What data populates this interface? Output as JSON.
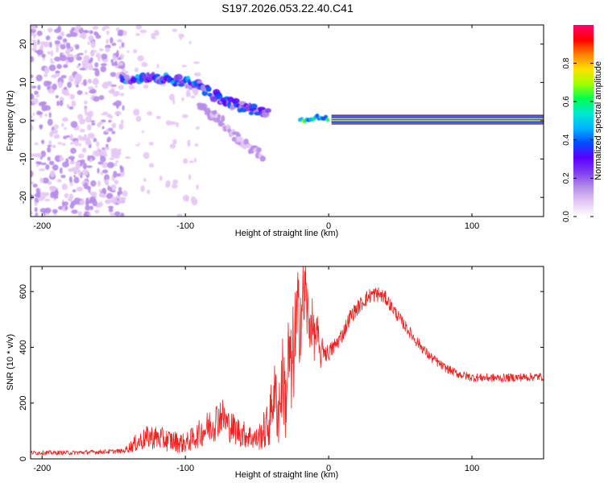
{
  "title": "S197.2026.053.22.40.C41",
  "colors": {
    "snr_line": "#ee2222",
    "frame": "#000000",
    "colormap": [
      "#ffffff",
      "#e4c8f4",
      "#b58ce8",
      "#7e3cf0",
      "#5a00ff",
      "#0050ff",
      "#00b4ff",
      "#00e8d0",
      "#00ff50",
      "#a0ff00",
      "#ffe000",
      "#ff8000",
      "#ff0000",
      "#ff0070"
    ]
  },
  "chart_data": [
    {
      "type": "heatmap",
      "id": "spectrogram",
      "xlabel": "Height of straight line (km)",
      "ylabel": "Frequency (Hz)",
      "xlim": [
        -208,
        150
      ],
      "ylim": [
        -25,
        25
      ],
      "xticks": [
        -200,
        -100,
        0,
        100
      ],
      "yticks": [
        -20,
        -10,
        0,
        10,
        20
      ],
      "colorbar": {
        "label": "Normalized spectral amplitude",
        "range": [
          0,
          1
        ],
        "ticks": [
          0.0,
          0.2,
          0.4,
          0.6,
          0.8
        ]
      },
      "features": [
        {
          "name": "diffuse noise region",
          "x_range": [
            -208,
            -143
          ],
          "freq_range": [
            -25,
            25
          ],
          "amplitude": 0.1
        },
        {
          "name": "fading noise region",
          "x_range": [
            -143,
            -90
          ],
          "freq_range": [
            -25,
            25
          ],
          "amplitude": 0.05
        },
        {
          "name": "upper branch",
          "x": [
            -145,
            -130,
            -115,
            -100,
            -90
          ],
          "freq": [
            11,
            11.2,
            10.8,
            10,
            9.5
          ],
          "amplitude": 0.35
        },
        {
          "name": "descending branch",
          "x": [
            -90,
            -75,
            -60,
            -50,
            -42
          ],
          "freq": [
            9,
            5.5,
            3.5,
            2.5,
            1.5
          ],
          "amplitude": 0.3
        },
        {
          "name": "lower branch",
          "x": [
            -90,
            -75,
            -60,
            -45
          ],
          "freq": [
            4,
            0,
            -6,
            -9
          ],
          "amplitude": 0.15
        },
        {
          "name": "zero-frequency trace",
          "x": [
            -20,
            -10,
            0,
            150
          ],
          "freq": [
            0,
            1,
            0.3,
            0.3
          ],
          "amplitude": 1.0
        }
      ]
    },
    {
      "type": "line",
      "id": "snr",
      "xlabel": "Height of straight line (km)",
      "ylabel": "SNR (10 * v/v)",
      "xlim": [
        -208,
        150
      ],
      "ylim": [
        0,
        690
      ],
      "xticks": [
        -200,
        -100,
        0,
        100
      ],
      "yticks": [
        0,
        200,
        400,
        600
      ],
      "series": [
        {
          "name": "SNR",
          "x": [
            -208,
            -180,
            -160,
            -143,
            -135,
            -125,
            -110,
            -100,
            -90,
            -80,
            -75,
            -70,
            -60,
            -50,
            -42,
            -38,
            -35,
            -32,
            -30,
            -28,
            -26,
            -24,
            -22,
            -20,
            -18,
            -16,
            -14,
            -12,
            -10,
            -8,
            -6,
            -4,
            -2,
            0,
            5,
            10,
            15,
            20,
            25,
            30,
            35,
            40,
            50,
            60,
            70,
            80,
            90,
            100,
            120,
            150
          ],
          "values": [
            22,
            22,
            25,
            28,
            55,
            80,
            65,
            55,
            90,
            130,
            160,
            120,
            90,
            70,
            120,
            240,
            170,
            300,
            200,
            380,
            280,
            420,
            480,
            520,
            560,
            600,
            470,
            500,
            430,
            460,
            360,
            400,
            380,
            380,
            410,
            450,
            510,
            540,
            570,
            590,
            590,
            575,
            500,
            430,
            370,
            330,
            305,
            292,
            290,
            295
          ],
          "noise": [
            8,
            8,
            8,
            8,
            30,
            45,
            40,
            35,
            50,
            70,
            70,
            60,
            50,
            40,
            90,
            110,
            140,
            150,
            160,
            170,
            190,
            200,
            200,
            170,
            160,
            150,
            110,
            100,
            80,
            70,
            50,
            40,
            35,
            30,
            30,
            28,
            28,
            28,
            28,
            28,
            28,
            25,
            22,
            20,
            18,
            16,
            15,
            15,
            15,
            15
          ]
        }
      ]
    }
  ]
}
